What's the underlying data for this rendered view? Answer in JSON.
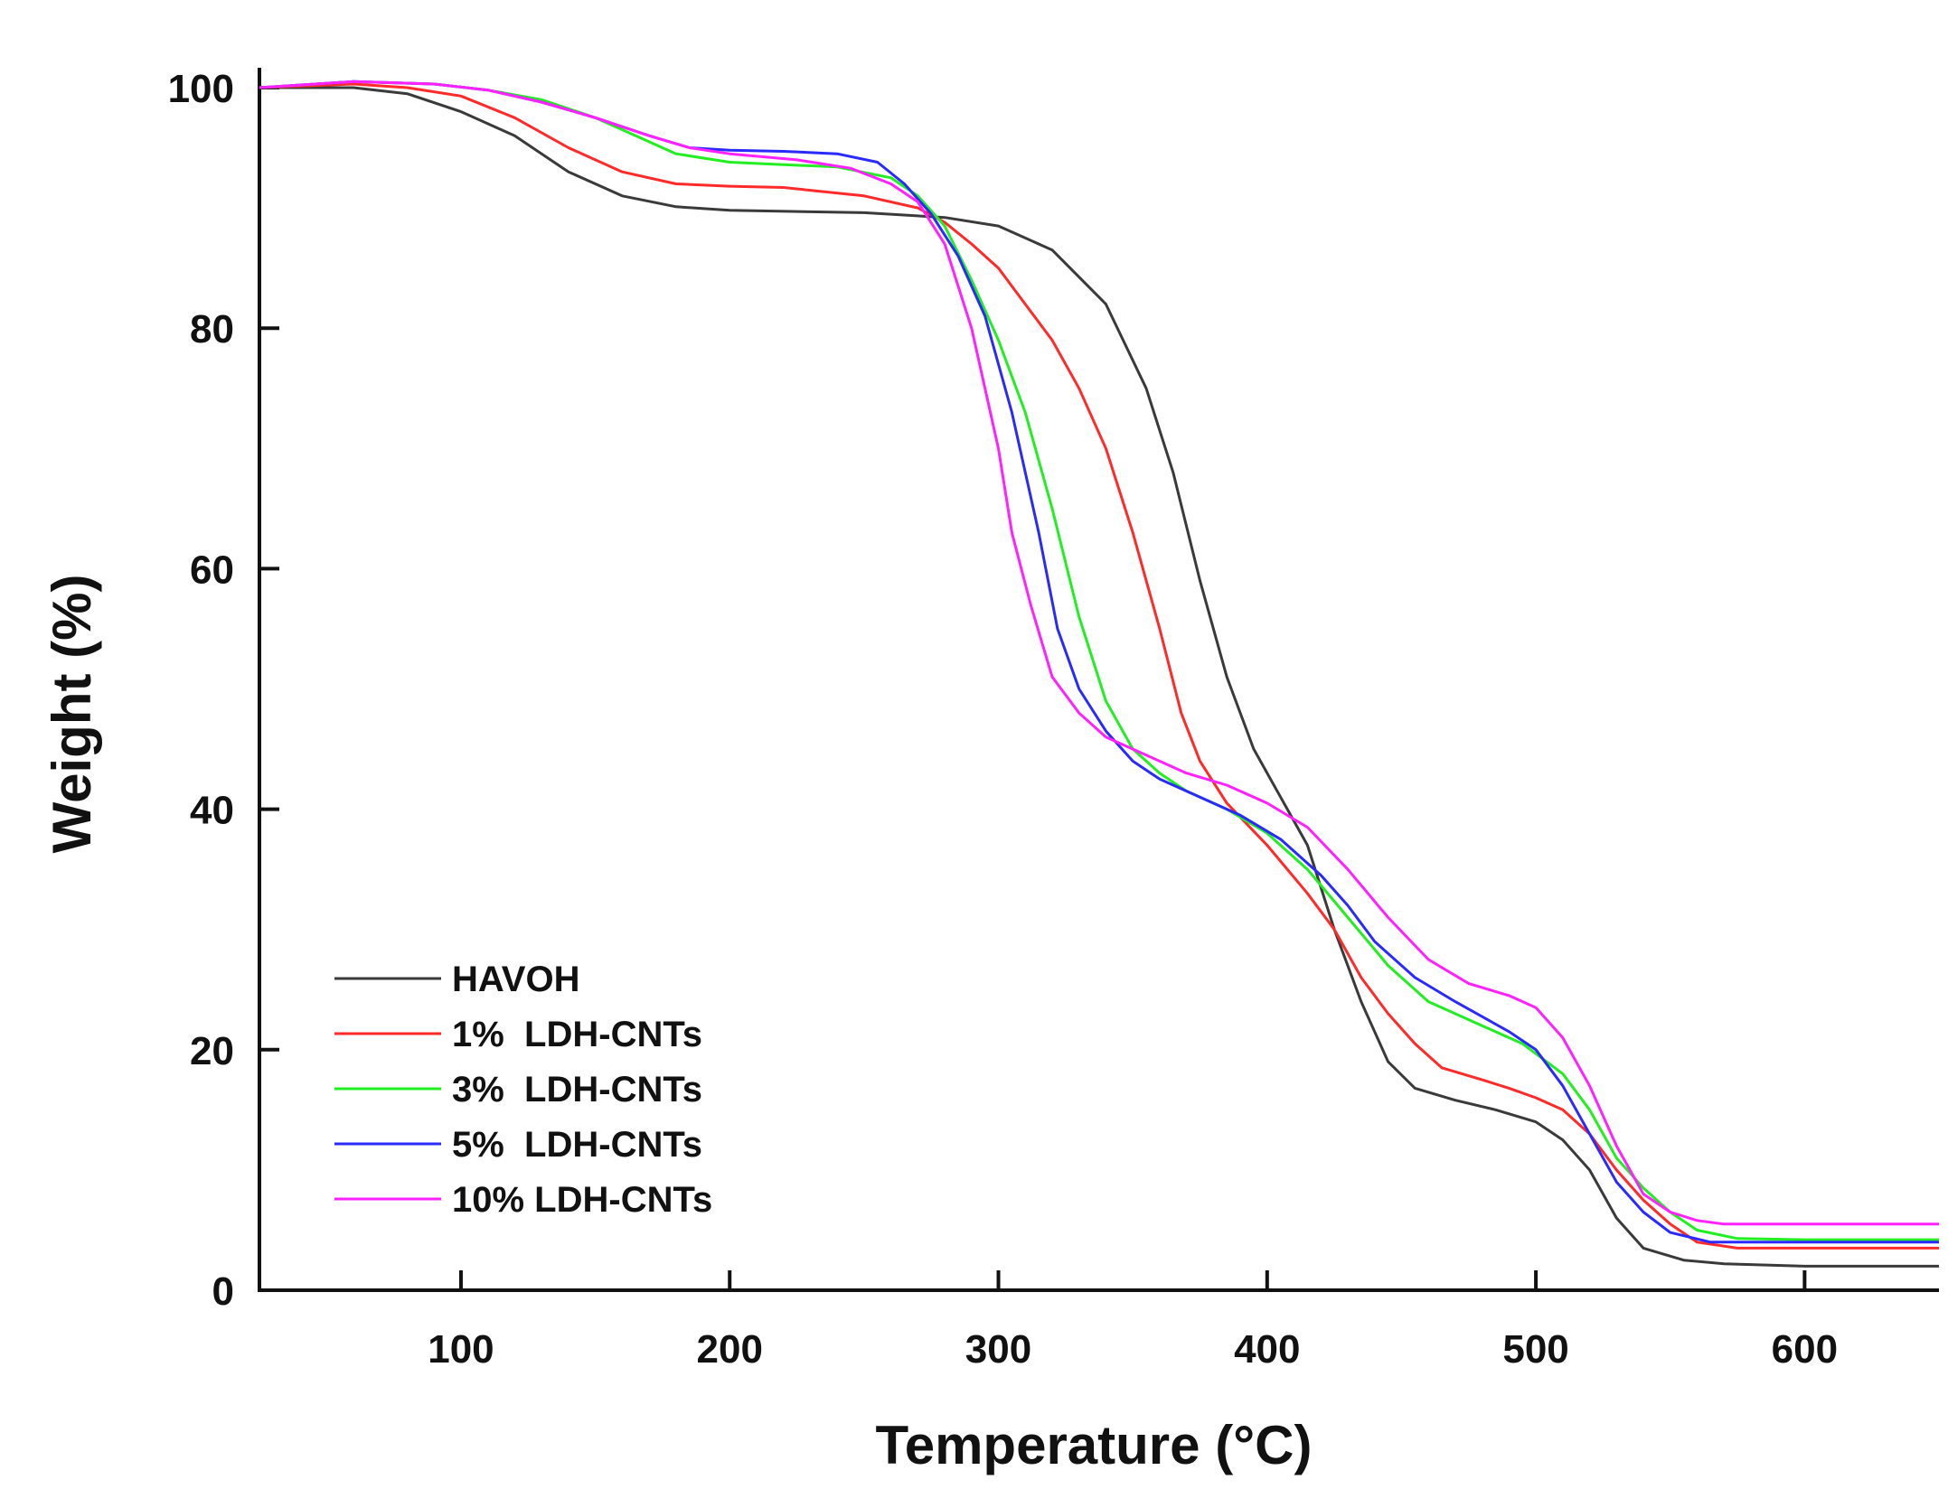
{
  "chart_data": {
    "type": "line",
    "title": "",
    "xlabel": "Temperature (°C)",
    "ylabel": "Weight (%)",
    "xlim": [
      25,
      650
    ],
    "ylim": [
      0,
      100
    ],
    "x_ticks": [
      100,
      200,
      300,
      400,
      500,
      600
    ],
    "x_tick_labels": [
      "100",
      "200",
      "300",
      "400",
      "500",
      "600"
    ],
    "y_ticks": [
      0,
      20,
      40,
      60,
      80,
      100
    ],
    "y_tick_labels": [
      "0",
      "20",
      "40",
      "60",
      "80",
      "100"
    ],
    "grid": false,
    "legend_position": "bottom-left",
    "series": [
      {
        "name": "HAVOH",
        "color": "#3a3a3a",
        "points": [
          [
            25,
            100
          ],
          [
            60,
            100
          ],
          [
            80,
            99.5
          ],
          [
            100,
            98
          ],
          [
            120,
            96
          ],
          [
            140,
            93
          ],
          [
            160,
            91
          ],
          [
            180,
            90.1
          ],
          [
            200,
            89.8
          ],
          [
            250,
            89.6
          ],
          [
            280,
            89.2
          ],
          [
            300,
            88.5
          ],
          [
            320,
            86.5
          ],
          [
            340,
            82
          ],
          [
            355,
            75
          ],
          [
            365,
            68
          ],
          [
            375,
            59
          ],
          [
            385,
            51
          ],
          [
            395,
            45
          ],
          [
            405,
            41
          ],
          [
            415,
            37
          ],
          [
            425,
            30
          ],
          [
            435,
            24
          ],
          [
            445,
            19
          ],
          [
            455,
            16.8
          ],
          [
            470,
            15.8
          ],
          [
            485,
            15
          ],
          [
            500,
            14
          ],
          [
            510,
            12.5
          ],
          [
            520,
            10
          ],
          [
            530,
            6
          ],
          [
            540,
            3.5
          ],
          [
            555,
            2.5
          ],
          [
            570,
            2.2
          ],
          [
            600,
            2
          ],
          [
            650,
            2
          ]
        ]
      },
      {
        "name": "1%  LDH-CNTs",
        "color": "#ff2a2a",
        "points": [
          [
            25,
            100
          ],
          [
            60,
            100.3
          ],
          [
            80,
            100
          ],
          [
            100,
            99.3
          ],
          [
            120,
            97.5
          ],
          [
            140,
            95
          ],
          [
            160,
            93
          ],
          [
            180,
            92
          ],
          [
            200,
            91.8
          ],
          [
            220,
            91.7
          ],
          [
            250,
            91
          ],
          [
            270,
            90
          ],
          [
            280,
            88.8
          ],
          [
            290,
            87
          ],
          [
            300,
            85
          ],
          [
            310,
            82
          ],
          [
            320,
            79
          ],
          [
            330,
            75
          ],
          [
            340,
            70
          ],
          [
            350,
            63
          ],
          [
            360,
            55
          ],
          [
            368,
            48
          ],
          [
            375,
            44
          ],
          [
            385,
            40.5
          ],
          [
            400,
            37
          ],
          [
            415,
            33
          ],
          [
            425,
            30
          ],
          [
            435,
            26
          ],
          [
            445,
            23
          ],
          [
            455,
            20.5
          ],
          [
            465,
            18.5
          ],
          [
            480,
            17.5
          ],
          [
            490,
            16.8
          ],
          [
            500,
            16
          ],
          [
            510,
            15
          ],
          [
            520,
            13
          ],
          [
            530,
            10
          ],
          [
            540,
            7.5
          ],
          [
            550,
            5.5
          ],
          [
            560,
            4
          ],
          [
            575,
            3.5
          ],
          [
            600,
            3.5
          ],
          [
            650,
            3.5
          ]
        ]
      },
      {
        "name": "3%  LDH-CNTs",
        "color": "#22ee22",
        "points": [
          [
            25,
            100
          ],
          [
            60,
            100.5
          ],
          [
            90,
            100.3
          ],
          [
            110,
            99.8
          ],
          [
            130,
            99
          ],
          [
            150,
            97.5
          ],
          [
            170,
            95.5
          ],
          [
            180,
            94.5
          ],
          [
            200,
            93.8
          ],
          [
            220,
            93.6
          ],
          [
            240,
            93.4
          ],
          [
            260,
            92.5
          ],
          [
            270,
            91
          ],
          [
            280,
            88.5
          ],
          [
            290,
            84
          ],
          [
            300,
            79
          ],
          [
            310,
            73
          ],
          [
            320,
            65
          ],
          [
            330,
            56
          ],
          [
            340,
            49
          ],
          [
            350,
            45
          ],
          [
            360,
            43
          ],
          [
            370,
            41.5
          ],
          [
            385,
            40
          ],
          [
            400,
            38
          ],
          [
            415,
            35
          ],
          [
            430,
            31
          ],
          [
            445,
            27
          ],
          [
            460,
            24
          ],
          [
            480,
            22
          ],
          [
            495,
            20.5
          ],
          [
            510,
            18
          ],
          [
            520,
            15
          ],
          [
            530,
            11
          ],
          [
            540,
            8.5
          ],
          [
            550,
            6.5
          ],
          [
            560,
            5
          ],
          [
            575,
            4.3
          ],
          [
            600,
            4.2
          ],
          [
            650,
            4.2
          ]
        ]
      },
      {
        "name": "5%  LDH-CNTs",
        "color": "#2a2aff",
        "points": [
          [
            25,
            100
          ],
          [
            60,
            100.5
          ],
          [
            90,
            100.3
          ],
          [
            110,
            99.8
          ],
          [
            130,
            98.8
          ],
          [
            150,
            97.5
          ],
          [
            170,
            96
          ],
          [
            185,
            95
          ],
          [
            200,
            94.8
          ],
          [
            220,
            94.7
          ],
          [
            240,
            94.5
          ],
          [
            255,
            93.8
          ],
          [
            265,
            92
          ],
          [
            275,
            89.5
          ],
          [
            285,
            86
          ],
          [
            295,
            81
          ],
          [
            305,
            73
          ],
          [
            315,
            63
          ],
          [
            322,
            55
          ],
          [
            330,
            50
          ],
          [
            340,
            46.5
          ],
          [
            350,
            44
          ],
          [
            360,
            42.5
          ],
          [
            375,
            41
          ],
          [
            390,
            39.5
          ],
          [
            405,
            37.5
          ],
          [
            420,
            34.5
          ],
          [
            430,
            32
          ],
          [
            440,
            29
          ],
          [
            455,
            26
          ],
          [
            470,
            24
          ],
          [
            490,
            21.5
          ],
          [
            500,
            20
          ],
          [
            510,
            17
          ],
          [
            520,
            13
          ],
          [
            530,
            9
          ],
          [
            540,
            6.5
          ],
          [
            550,
            4.8
          ],
          [
            565,
            4
          ],
          [
            600,
            4
          ],
          [
            650,
            4
          ]
        ]
      },
      {
        "name": "10% LDH-CNTs",
        "color": "#ff22ff",
        "points": [
          [
            25,
            100
          ],
          [
            60,
            100.5
          ],
          [
            90,
            100.3
          ],
          [
            110,
            99.8
          ],
          [
            130,
            98.8
          ],
          [
            150,
            97.5
          ],
          [
            170,
            96
          ],
          [
            185,
            95
          ],
          [
            200,
            94.5
          ],
          [
            225,
            94
          ],
          [
            245,
            93.3
          ],
          [
            260,
            92
          ],
          [
            270,
            90.5
          ],
          [
            280,
            87
          ],
          [
            290,
            80
          ],
          [
            300,
            70
          ],
          [
            305,
            63
          ],
          [
            312,
            57
          ],
          [
            320,
            51
          ],
          [
            330,
            48
          ],
          [
            340,
            46
          ],
          [
            355,
            44.5
          ],
          [
            370,
            43
          ],
          [
            385,
            42
          ],
          [
            400,
            40.5
          ],
          [
            415,
            38.5
          ],
          [
            430,
            35
          ],
          [
            445,
            31
          ],
          [
            460,
            27.5
          ],
          [
            475,
            25.5
          ],
          [
            490,
            24.5
          ],
          [
            500,
            23.5
          ],
          [
            510,
            21
          ],
          [
            520,
            17
          ],
          [
            530,
            12
          ],
          [
            540,
            8
          ],
          [
            550,
            6.5
          ],
          [
            560,
            5.8
          ],
          [
            570,
            5.5
          ],
          [
            600,
            5.5
          ],
          [
            650,
            5.5
          ]
        ]
      }
    ]
  }
}
